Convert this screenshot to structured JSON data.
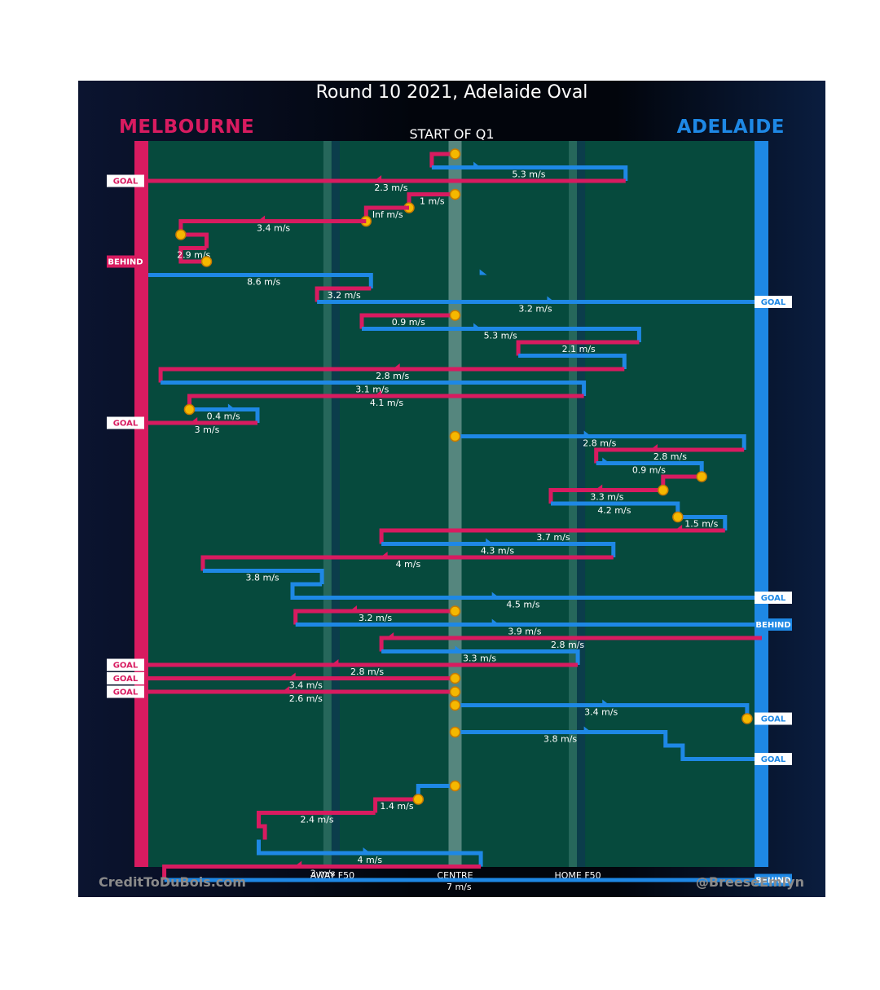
{
  "title": "Round 10 2021, Adelaide Oval",
  "phase_label": "START OF Q1",
  "teams": {
    "left": {
      "name": "MELBOURNE",
      "color": "#d81b60"
    },
    "right": {
      "name": "ADELAIDE",
      "color": "#1e88e5"
    }
  },
  "colors": {
    "field": "#064a3d",
    "band": "#2e6e63",
    "band_dark": "#0c3c4c",
    "ball": "#f5b800",
    "ball_edge": "#c77a00",
    "centre": "#5e8d85"
  },
  "footer": {
    "left": "CreditToDuBois.com",
    "right": "@BreeseEmlyn"
  },
  "chart_data": {
    "type": "line",
    "title": "Round 10 2021, Adelaide Oval",
    "subtitle": "START OF Q1",
    "xlabel": "",
    "ylabel": "",
    "x_axis": {
      "range": [
        0,
        1
      ],
      "ticks": [
        {
          "value": 0.3,
          "label": "AWAY F50"
        },
        {
          "value": 0.5,
          "label": "CENTRE"
        },
        {
          "value": 0.7,
          "label": "HOME F50"
        }
      ]
    },
    "segments": [
      {
        "team": "MEL",
        "path": [
          [
            0.5,
            0
          ],
          [
            0.462,
            0
          ],
          [
            0.462,
            1
          ]
        ],
        "speed": null,
        "balls": [
          0
        ]
      },
      {
        "team": "ADE",
        "path": [
          [
            0.462,
            1
          ],
          [
            0.778,
            1
          ],
          [
            0.778,
            2
          ]
        ],
        "speed": "5.3 m/s",
        "arrow": 0.53
      },
      {
        "team": "MEL",
        "path": [
          [
            0.778,
            2
          ],
          [
            -0.045,
            2
          ]
        ],
        "speed": "2.3 m/s",
        "arrow": 0.38,
        "score": "GOAL"
      },
      {
        "team": "MEL",
        "path": [
          [
            0.5,
            3
          ],
          [
            0.425,
            3
          ],
          [
            0.425,
            4
          ]
        ],
        "speed": "1 m/s",
        "balls": [
          0,
          2
        ]
      },
      {
        "team": "MEL",
        "path": [
          [
            0.425,
            4
          ],
          [
            0.355,
            4
          ],
          [
            0.355,
            5
          ]
        ],
        "speed": "Inf m/s",
        "balls": [
          2
        ]
      },
      {
        "team": "MEL",
        "path": [
          [
            0.355,
            5
          ],
          [
            0.053,
            5
          ],
          [
            0.053,
            6
          ]
        ],
        "speed": "3.4 m/s",
        "arrow": 0.19
      },
      {
        "team": "MEL",
        "path": [
          [
            0.053,
            6
          ],
          [
            0.095,
            6
          ],
          [
            0.095,
            7
          ]
        ],
        "speed": null,
        "balls": [
          0
        ]
      },
      {
        "team": "MEL",
        "path": [
          [
            0.095,
            7
          ],
          [
            0.053,
            7
          ],
          [
            0.053,
            8
          ],
          [
            0.095,
            8
          ]
        ],
        "speed": "2.9 m/s",
        "balls": [
          3
        ],
        "score": "BEHIND"
      },
      {
        "team": "ADE",
        "path": [
          [
            0.0,
            9
          ],
          [
            0.363,
            9
          ],
          [
            0.363,
            10
          ]
        ],
        "speed": "8.6 m/s",
        "arrow": 0.54
      },
      {
        "team": "MEL",
        "path": [
          [
            0.363,
            10
          ],
          [
            0.275,
            10
          ],
          [
            0.275,
            11
          ]
        ],
        "speed": "3.2 m/s"
      },
      {
        "team": "ADE",
        "path": [
          [
            0.275,
            11
          ],
          [
            1.0,
            11
          ]
        ],
        "speed": "3.2 m/s",
        "arrow": 0.65,
        "score": "GOAL"
      },
      {
        "team": "MEL",
        "path": [
          [
            0.5,
            12
          ],
          [
            0.348,
            12
          ],
          [
            0.348,
            13
          ]
        ],
        "speed": "0.9 m/s",
        "balls": [
          0
        ]
      },
      {
        "team": "ADE",
        "path": [
          [
            0.348,
            13
          ],
          [
            0.8,
            13
          ],
          [
            0.8,
            14
          ]
        ],
        "speed": "5.3 m/s",
        "arrow": 0.53
      },
      {
        "team": "MEL",
        "path": [
          [
            0.8,
            14
          ],
          [
            0.603,
            14
          ],
          [
            0.603,
            15
          ]
        ],
        "speed": "2.1 m/s"
      },
      {
        "team": "ADE",
        "path": [
          [
            0.603,
            15
          ],
          [
            0.776,
            15
          ],
          [
            0.776,
            16
          ]
        ],
        "speed": null
      },
      {
        "team": "MEL",
        "path": [
          [
            0.776,
            16
          ],
          [
            0.02,
            16
          ],
          [
            0.02,
            17
          ]
        ],
        "speed": "2.8 m/s",
        "arrow": 0.41
      },
      {
        "team": "ADE",
        "path": [
          [
            0.02,
            17
          ],
          [
            0.71,
            17
          ],
          [
            0.71,
            18
          ]
        ],
        "speed": "3.1 m/s"
      },
      {
        "team": "MEL",
        "path": [
          [
            0.71,
            18
          ],
          [
            0.067,
            18
          ],
          [
            0.067,
            19
          ]
        ],
        "speed": "4.1 m/s",
        "arrow": 0.38
      },
      {
        "team": "ADE",
        "path": [
          [
            0.067,
            19
          ],
          [
            0.178,
            19
          ],
          [
            0.178,
            20
          ]
        ],
        "speed": "0.4 m/s",
        "balls": [
          0
        ],
        "arrow": 0.13
      },
      {
        "team": "MEL",
        "path": [
          [
            0.178,
            20
          ],
          [
            -0.045,
            20
          ]
        ],
        "speed": "3 m/s",
        "arrow": 0.08,
        "score": "GOAL"
      },
      {
        "team": "ADE",
        "path": [
          [
            0.5,
            21
          ],
          [
            0.971,
            21
          ],
          [
            0.971,
            22
          ]
        ],
        "speed": "2.8 m/s",
        "balls": [
          0
        ],
        "arrow": 0.71
      },
      {
        "team": "MEL",
        "path": [
          [
            0.971,
            22
          ],
          [
            0.73,
            22
          ],
          [
            0.73,
            23
          ]
        ],
        "speed": "2.8 m/s",
        "arrow": 0.83
      },
      {
        "team": "ADE",
        "path": [
          [
            0.73,
            23
          ],
          [
            0.902,
            23
          ],
          [
            0.902,
            24
          ]
        ],
        "speed": "0.9 m/s",
        "arrow": 0.74
      },
      {
        "team": "MEL",
        "path": [
          [
            0.902,
            24
          ],
          [
            0.839,
            24
          ],
          [
            0.839,
            25
          ]
        ],
        "speed": null,
        "balls": [
          0
        ]
      },
      {
        "team": "MEL",
        "path": [
          [
            0.839,
            25
          ],
          [
            0.656,
            25
          ],
          [
            0.656,
            26
          ]
        ],
        "speed": "3.3 m/s",
        "balls": [
          0
        ],
        "arrow": 0.74
      },
      {
        "team": "ADE",
        "path": [
          [
            0.656,
            26
          ],
          [
            0.863,
            26
          ],
          [
            0.863,
            27
          ]
        ],
        "speed": "4.2 m/s"
      },
      {
        "team": "ADE",
        "path": [
          [
            0.863,
            27
          ],
          [
            0.94,
            27
          ],
          [
            0.94,
            28
          ]
        ],
        "speed": "1.5 m/s",
        "balls": [
          0
        ]
      },
      {
        "team": "MEL",
        "path": [
          [
            0.94,
            28
          ],
          [
            0.38,
            28
          ],
          [
            0.38,
            29
          ]
        ],
        "speed": "3.7 m/s",
        "arrow": 0.87
      },
      {
        "team": "ADE",
        "path": [
          [
            0.38,
            29
          ],
          [
            0.758,
            29
          ],
          [
            0.758,
            30
          ]
        ],
        "speed": "4.3 m/s",
        "arrow": 0.55
      },
      {
        "team": "MEL",
        "path": [
          [
            0.758,
            30
          ],
          [
            0.089,
            30
          ],
          [
            0.089,
            31
          ]
        ],
        "speed": "4 m/s",
        "arrow": 0.39
      },
      {
        "team": "ADE",
        "path": [
          [
            0.089,
            31
          ],
          [
            0.283,
            31
          ],
          [
            0.283,
            32
          ]
        ],
        "speed": "3.8 m/s"
      },
      {
        "team": "ADE",
        "path": [
          [
            0.283,
            32
          ],
          [
            0.235,
            32
          ],
          [
            0.235,
            33
          ],
          [
            1.0,
            33
          ]
        ],
        "speed": "4.5 m/s",
        "arrow": 0.56,
        "score": "GOAL"
      },
      {
        "team": "MEL",
        "path": [
          [
            0.5,
            34
          ],
          [
            0.24,
            34
          ],
          [
            0.24,
            35
          ]
        ],
        "speed": "3.2 m/s",
        "balls": [
          0
        ],
        "arrow": 0.34
      },
      {
        "team": "ADE",
        "path": [
          [
            0.24,
            35
          ],
          [
            1.0,
            35
          ]
        ],
        "speed": "3.9 m/s",
        "arrow": 0.56,
        "score": "BEHIND"
      },
      {
        "team": "MEL",
        "path": [
          [
            1.0,
            36
          ],
          [
            0.38,
            36
          ],
          [
            0.38,
            37
          ]
        ],
        "speed": "2.8 m/s",
        "arrow": 0.4
      },
      {
        "team": "ADE",
        "path": [
          [
            0.38,
            37
          ],
          [
            0.7,
            37
          ],
          [
            0.7,
            38
          ]
        ],
        "speed": "3.3 m/s",
        "arrow": 0.5
      },
      {
        "team": "MEL",
        "path": [
          [
            0.7,
            38
          ],
          [
            -0.045,
            38
          ]
        ],
        "speed": "2.8 m/s",
        "arrow": 0.31,
        "score": "GOAL"
      },
      {
        "team": "MEL",
        "path": [
          [
            0.5,
            39
          ],
          [
            -0.045,
            39
          ]
        ],
        "speed": "3.4 m/s",
        "balls": [
          0
        ],
        "arrow": 0.24,
        "score": "GOAL"
      },
      {
        "team": "MEL",
        "path": [
          [
            0.5,
            40
          ],
          [
            -0.045,
            40
          ]
        ],
        "speed": "2.6 m/s",
        "balls": [
          0
        ],
        "arrow": 0.23,
        "score": "GOAL"
      },
      {
        "team": "ADE",
        "path": [
          [
            0.5,
            41
          ],
          [
            0.976,
            41
          ],
          [
            0.976,
            42
          ]
        ],
        "speed": "3.4 m/s",
        "balls": [
          0,
          2
        ],
        "arrow": 0.74,
        "score": "GOAL"
      },
      {
        "team": "ADE",
        "path": [
          [
            0.5,
            43
          ],
          [
            0.843,
            43
          ],
          [
            0.843,
            44
          ],
          [
            0.871,
            44
          ],
          [
            0.871,
            45
          ],
          [
            1.0,
            45
          ]
        ],
        "speed": "3.8 m/s",
        "balls": [
          0
        ],
        "arrow": 0.71,
        "score": "GOAL"
      },
      {
        "team": "ADE",
        "path": [
          [
            0.5,
            47
          ],
          [
            0.44,
            47
          ],
          [
            0.44,
            48
          ]
        ],
        "speed": null,
        "balls": [
          0
        ]
      },
      {
        "team": "MEL",
        "path": [
          [
            0.44,
            48
          ],
          [
            0.37,
            48
          ],
          [
            0.37,
            49
          ]
        ],
        "speed": "1.4 m/s",
        "balls": [
          0
        ]
      },
      {
        "team": "MEL",
        "path": [
          [
            0.37,
            49
          ],
          [
            0.18,
            49
          ],
          [
            0.18,
            50
          ],
          [
            0.19,
            50
          ],
          [
            0.19,
            51
          ]
        ],
        "speed": "2.4 m/s"
      },
      {
        "team": "ADE",
        "path": [
          [
            0.18,
            51
          ],
          [
            0.18,
            52
          ],
          [
            0.542,
            52
          ],
          [
            0.542,
            53
          ]
        ],
        "speed": "4 m/s",
        "arrow": 0.35
      },
      {
        "team": "MEL",
        "path": [
          [
            0.542,
            53
          ],
          [
            0.026,
            53
          ],
          [
            0.026,
            54
          ]
        ],
        "speed": "3 m/s",
        "arrow": 0.25
      },
      {
        "team": "ADE",
        "path": [
          [
            0.026,
            54
          ],
          [
            1.0,
            54
          ]
        ],
        "speed": "7 m/s",
        "score": "BEHIND"
      }
    ]
  }
}
